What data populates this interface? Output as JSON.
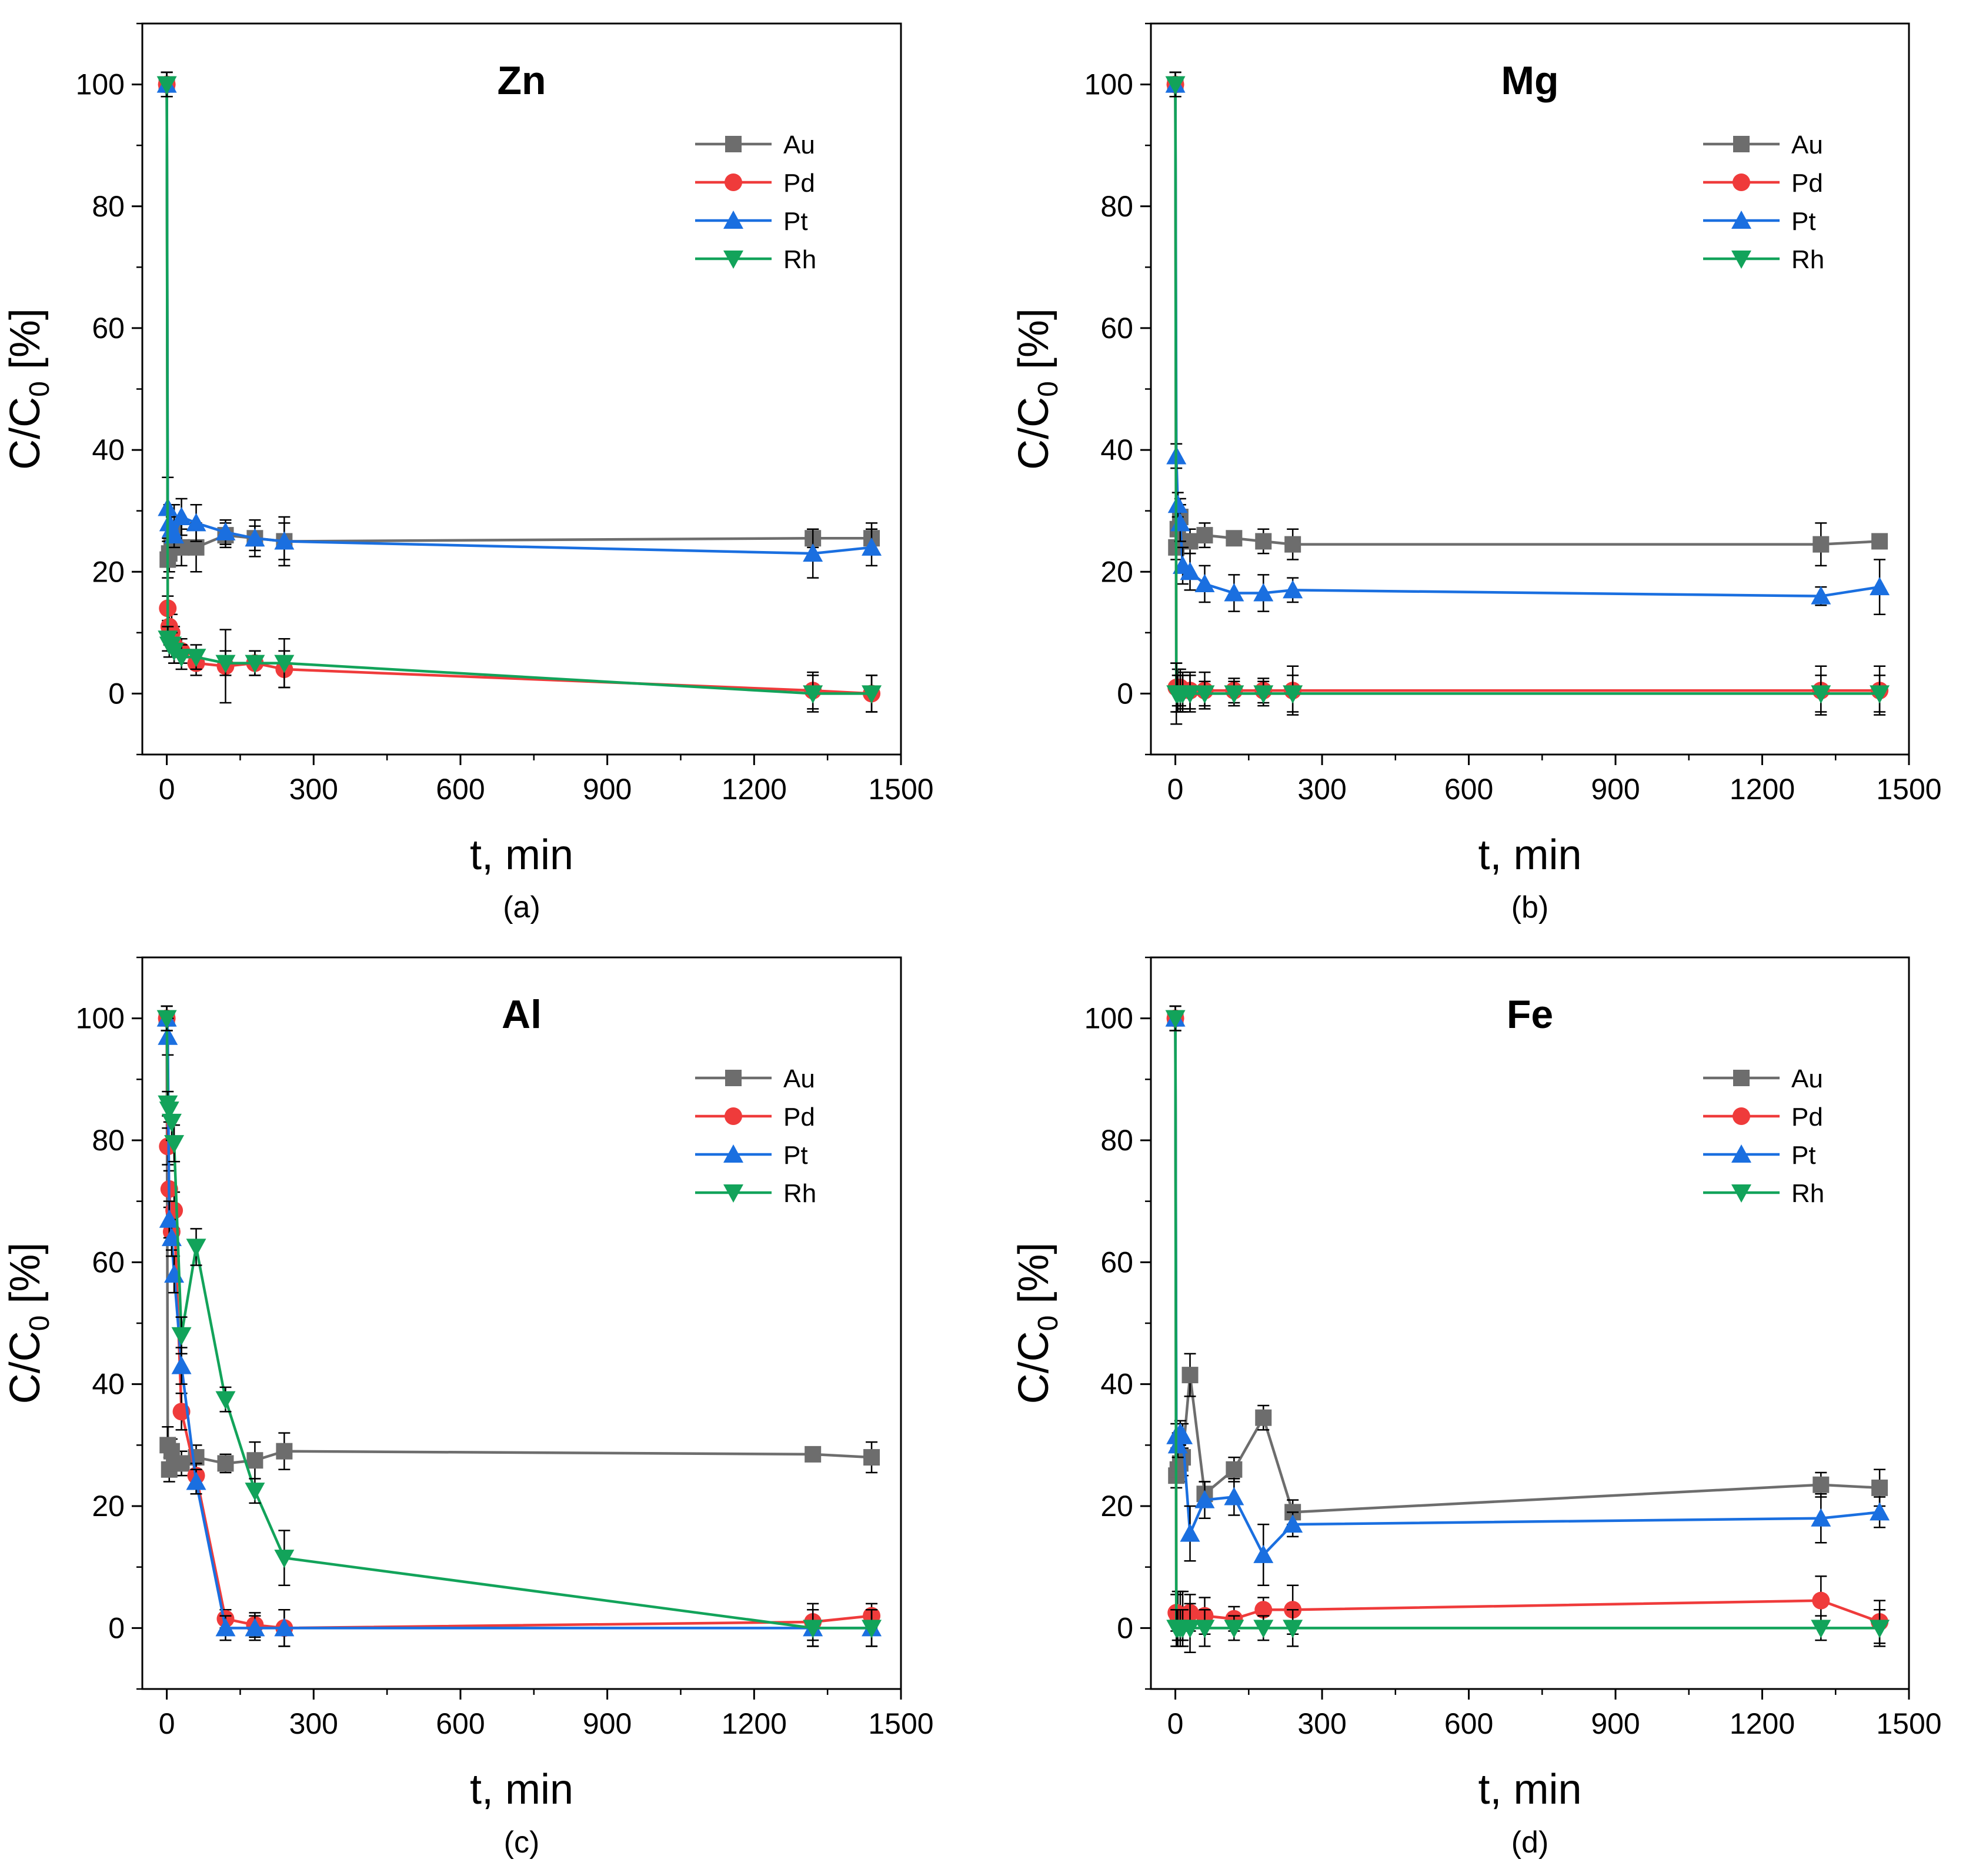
{
  "colors": {
    "Au": "#6d6d6d",
    "Pd": "#ef3b3b",
    "Pt": "#1a6fe0",
    "Rh": "#12a35a",
    "errorbar": "#000000"
  },
  "chart_data": [
    {
      "type": "line",
      "caption": "(a)",
      "title": "Zn",
      "xlabel": "t, min",
      "ylabel": "C/C0 [%]",
      "ylabel_main": "C/C",
      "ylabel_sub": "0",
      "ylabel_tail": " [%]",
      "xlim": [
        -50,
        1500
      ],
      "ylim": [
        -10,
        110
      ],
      "xticks": [
        0,
        300,
        600,
        900,
        1200,
        1500
      ],
      "yticks": [
        0,
        20,
        40,
        60,
        80,
        100
      ],
      "legend_position": "top-right",
      "series": [
        {
          "name": "Au",
          "x": [
            0,
            2,
            5,
            10,
            15,
            30,
            60,
            120,
            180,
            240,
            1320,
            1440
          ],
          "y": [
            100,
            22,
            23,
            24,
            27,
            24,
            24,
            26,
            25.5,
            25,
            25.5,
            25.5
          ],
          "err": [
            2,
            3,
            3,
            3,
            4,
            3,
            4,
            2,
            2,
            3,
            1.5,
            2.5
          ]
        },
        {
          "name": "Pd",
          "x": [
            0,
            2,
            5,
            10,
            15,
            30,
            60,
            120,
            180,
            240,
            1320,
            1440
          ],
          "y": [
            100,
            14,
            11,
            10,
            8,
            7,
            5,
            4.5,
            5,
            4,
            0.5,
            0
          ],
          "err": [
            2,
            2,
            3,
            3,
            3,
            2,
            2,
            6,
            2,
            3,
            3,
            3
          ]
        },
        {
          "name": "Pt",
          "x": [
            0,
            2,
            5,
            10,
            15,
            30,
            60,
            120,
            180,
            240,
            1320,
            1440
          ],
          "y": [
            100,
            30.5,
            28,
            27,
            26,
            29,
            28,
            26.5,
            25.5,
            25,
            23,
            24
          ],
          "err": [
            2,
            5,
            3,
            2,
            2,
            3,
            3,
            2,
            3,
            4,
            4,
            3
          ]
        },
        {
          "name": "Rh",
          "x": [
            0,
            2,
            5,
            10,
            15,
            30,
            60,
            120,
            180,
            240,
            1320,
            1440
          ],
          "y": [
            100,
            9,
            8,
            8,
            7,
            6,
            6,
            5,
            5,
            5,
            0,
            0
          ],
          "err": [
            2,
            2,
            2,
            2,
            2,
            2,
            2,
            2,
            2,
            4,
            3,
            3
          ]
        }
      ]
    },
    {
      "type": "line",
      "caption": "(b)",
      "title": "Mg",
      "xlabel": "t, min",
      "ylabel": "C/C0 [%]",
      "ylabel_main": "C/C",
      "ylabel_sub": "0",
      "ylabel_tail": " [%]",
      "xlim": [
        -50,
        1500
      ],
      "ylim": [
        -10,
        110
      ],
      "xticks": [
        0,
        300,
        600,
        900,
        1200,
        1500
      ],
      "yticks": [
        0,
        20,
        40,
        60,
        80,
        100
      ],
      "legend_position": "top-right",
      "series": [
        {
          "name": "Au",
          "x": [
            0,
            2,
            5,
            10,
            15,
            30,
            60,
            120,
            180,
            240,
            1320,
            1440
          ],
          "y": [
            100,
            24,
            27,
            29,
            25,
            25,
            26,
            25.5,
            25,
            24.5,
            24.5,
            25
          ],
          "err": [
            2,
            2,
            3,
            3,
            2,
            2,
            2,
            1,
            2,
            2.5,
            3.5,
            1
          ]
        },
        {
          "name": "Pd",
          "x": [
            0,
            2,
            5,
            10,
            15,
            30,
            60,
            120,
            180,
            240,
            1320,
            1440
          ],
          "y": [
            100,
            1,
            1,
            1,
            0.5,
            0.5,
            0.5,
            0.5,
            0.5,
            0.5,
            0.5,
            0.5
          ],
          "err": [
            2,
            4,
            3,
            3,
            3,
            3,
            3,
            2,
            2,
            4,
            4,
            4
          ]
        },
        {
          "name": "Pt",
          "x": [
            0,
            2,
            5,
            10,
            15,
            30,
            60,
            120,
            180,
            240,
            1320,
            1440
          ],
          "y": [
            100,
            39,
            31,
            28,
            21,
            20,
            18,
            16.5,
            16.5,
            17,
            16,
            17.5
          ],
          "err": [
            2,
            2,
            2,
            3,
            3,
            3,
            3,
            3,
            3,
            2,
            1.5,
            4.5
          ]
        },
        {
          "name": "Rh",
          "x": [
            0,
            2,
            5,
            10,
            15,
            30,
            60,
            120,
            180,
            240,
            1320,
            1440
          ],
          "y": [
            100,
            0,
            0,
            0,
            0,
            0,
            0,
            0,
            0,
            0,
            0,
            0
          ],
          "err": [
            2,
            5,
            3,
            3,
            3,
            3,
            2,
            2,
            2,
            3,
            3,
            3
          ]
        }
      ]
    },
    {
      "type": "line",
      "caption": "(c)",
      "title": "Al",
      "xlabel": "t, min",
      "ylabel": "C/C0 [%]",
      "ylabel_main": "C/C",
      "ylabel_sub": "0",
      "ylabel_tail": " [%]",
      "xlim": [
        -50,
        1500
      ],
      "ylim": [
        -10,
        110
      ],
      "xticks": [
        0,
        300,
        600,
        900,
        1200,
        1500
      ],
      "yticks": [
        0,
        20,
        40,
        60,
        80,
        100
      ],
      "legend_position": "top-right",
      "series": [
        {
          "name": "Au",
          "x": [
            0,
            2,
            5,
            10,
            15,
            30,
            60,
            120,
            180,
            240,
            1320,
            1440
          ],
          "y": [
            100,
            30,
            26,
            29,
            27,
            27,
            28,
            27,
            27.5,
            29,
            28.5,
            28
          ],
          "err": [
            2,
            3,
            2,
            2,
            2,
            2,
            2,
            1.5,
            3,
            3,
            1,
            2.5
          ]
        },
        {
          "name": "Pd",
          "x": [
            0,
            2,
            5,
            10,
            15,
            30,
            60,
            120,
            180,
            240,
            1320,
            1440
          ],
          "y": [
            100,
            79,
            72,
            65,
            68.5,
            35.5,
            25,
            1.5,
            0.5,
            0,
            1,
            2
          ],
          "err": [
            2,
            3,
            3,
            3,
            3,
            3,
            2,
            1.5,
            2,
            3,
            3,
            2
          ]
        },
        {
          "name": "Pt",
          "x": [
            0,
            2,
            5,
            10,
            15,
            30,
            60,
            120,
            180,
            240,
            1320,
            1440
          ],
          "y": [
            100,
            97,
            67,
            64,
            58,
            43,
            24,
            0,
            0,
            0,
            0,
            0
          ],
          "err": [
            2,
            3,
            3,
            3,
            3,
            3,
            2,
            2,
            2,
            3,
            3,
            3
          ]
        },
        {
          "name": "Rh",
          "x": [
            0,
            2,
            5,
            10,
            15,
            30,
            60,
            120,
            180,
            240,
            1320,
            1440
          ],
          "y": [
            100,
            86,
            85,
            83,
            79.5,
            48,
            62.5,
            37.5,
            22.5,
            11.5,
            0,
            0
          ],
          "err": [
            2,
            2,
            2,
            3,
            3,
            3,
            3,
            2,
            2,
            4.5,
            3,
            3
          ]
        }
      ]
    },
    {
      "type": "line",
      "caption": "(d)",
      "title": "Fe",
      "xlabel": "t, min",
      "ylabel": "C/C0 [%]",
      "ylabel_main": "C/C",
      "ylabel_sub": "0",
      "ylabel_tail": " [%]",
      "xlim": [
        -50,
        1500
      ],
      "ylim": [
        -10,
        110
      ],
      "xticks": [
        0,
        300,
        600,
        900,
        1200,
        1500
      ],
      "yticks": [
        0,
        20,
        40,
        60,
        80,
        100
      ],
      "legend_position": "top-right",
      "series": [
        {
          "name": "Au",
          "x": [
            0,
            2,
            5,
            10,
            15,
            30,
            60,
            120,
            180,
            240,
            1320,
            1440
          ],
          "y": [
            100,
            25,
            26,
            27,
            28,
            41.5,
            22,
            26,
            34.5,
            19,
            23.5,
            23
          ],
          "err": [
            2,
            2,
            2,
            3,
            3,
            3.5,
            2,
            2,
            2,
            2,
            2,
            3
          ]
        },
        {
          "name": "Pd",
          "x": [
            0,
            2,
            5,
            10,
            15,
            30,
            60,
            120,
            180,
            240,
            1320,
            1440
          ],
          "y": [
            100,
            2.5,
            2,
            2,
            2,
            2.5,
            2,
            1.5,
            3,
            3,
            4.5,
            1
          ],
          "err": [
            2,
            3,
            4,
            4,
            4,
            3,
            3,
            2,
            2,
            4,
            4,
            3.5
          ]
        },
        {
          "name": "Pt",
          "x": [
            0,
            2,
            5,
            10,
            15,
            30,
            60,
            120,
            180,
            240,
            1320,
            1440
          ],
          "y": [
            100,
            31.5,
            30,
            32,
            31.5,
            15.5,
            21,
            21.5,
            12,
            17,
            18,
            19
          ],
          "err": [
            2,
            2,
            2,
            2,
            2,
            4.5,
            3,
            3,
            5,
            2,
            4,
            2.5
          ]
        },
        {
          "name": "Rh",
          "x": [
            0,
            2,
            5,
            10,
            15,
            30,
            60,
            120,
            180,
            240,
            1320,
            1440
          ],
          "y": [
            100,
            0,
            0,
            0,
            0,
            0,
            0,
            0,
            0,
            0,
            0,
            0
          ],
          "err": [
            2,
            3,
            3,
            3,
            3,
            4,
            3,
            2,
            2,
            3,
            2,
            3
          ]
        }
      ]
    }
  ]
}
